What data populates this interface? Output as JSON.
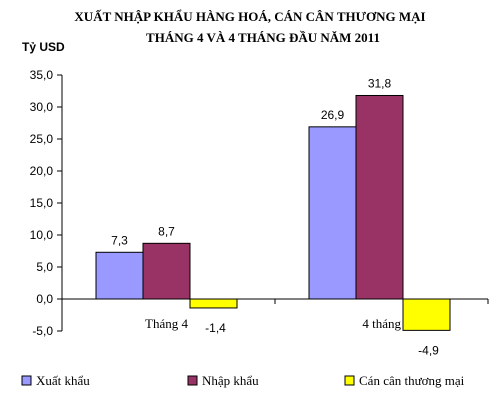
{
  "chart_data": {
    "type": "bar",
    "title": "XUẤT NHẬP KHẨU HÀNG HOÁ, CÁN CÂN THƯƠNG MẠI",
    "subtitle": "THÁNG 4 VÀ 4 THÁNG ĐẦU NĂM 2011",
    "ylabel": "Tỷ USD",
    "xlabel": "",
    "ylim": [
      -5,
      35
    ],
    "yticks": [
      35,
      30,
      25,
      20,
      15,
      10,
      5,
      0,
      -5
    ],
    "ytick_labels": [
      "35,0",
      "30,0",
      "25,0",
      "20,0",
      "15,0",
      "10,0",
      "5,0",
      "0,0",
      "-5,0"
    ],
    "grid": false,
    "legend_position": "bottom",
    "categories": [
      "Tháng 4",
      "4 tháng"
    ],
    "series": [
      {
        "name": "Xuất khẩu",
        "values": [
          7.3,
          26.9
        ],
        "labels": [
          "7,3",
          "26,9"
        ],
        "color": "#9999ff"
      },
      {
        "name": "Nhập khẩu",
        "values": [
          8.7,
          31.8
        ],
        "labels": [
          "8,7",
          "31,8"
        ],
        "color": "#993366"
      },
      {
        "name": "Cán cân thương mại",
        "values": [
          -1.4,
          -4.9
        ],
        "labels": [
          "-1,4",
          "-4,9"
        ],
        "color": "#ffff00"
      }
    ]
  }
}
